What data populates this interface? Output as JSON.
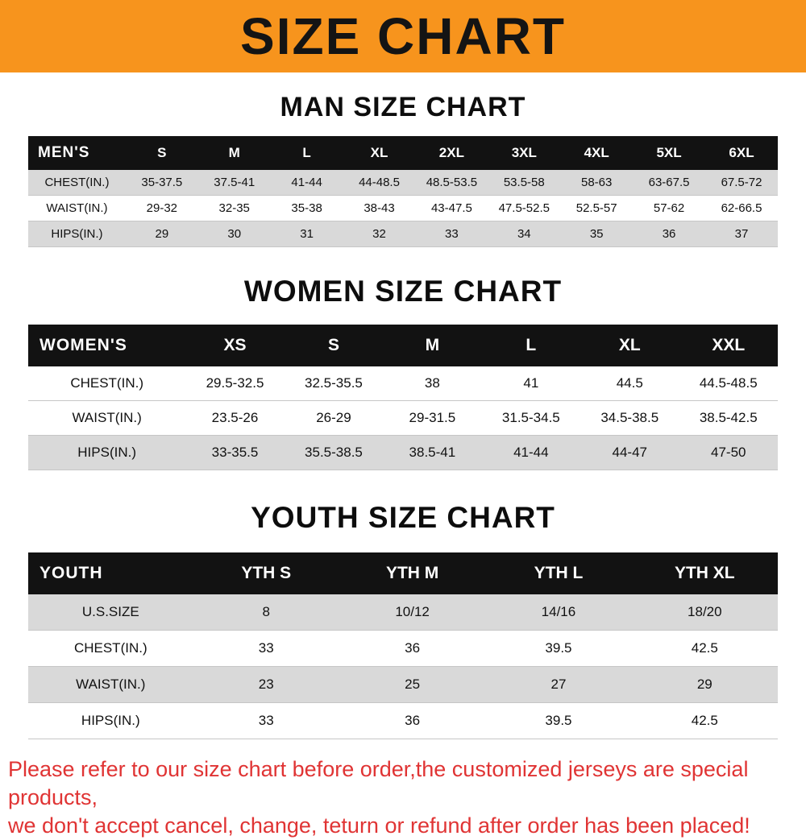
{
  "banner": {
    "title": "SIZE CHART"
  },
  "colors": {
    "banner_bg": "#F7941D",
    "table_header_bg": "#121212",
    "row_shade": "#D9D9D9",
    "footer_text": "#E03434"
  },
  "sections": [
    {
      "id": "man",
      "heading": "MAN SIZE CHART",
      "table": {
        "header": [
          "MEN'S",
          "S",
          "M",
          "L",
          "XL",
          "2XL",
          "3XL",
          "4XL",
          "5XL",
          "6XL"
        ],
        "rows": [
          {
            "label": "CHEST(IN.)",
            "values": [
              "35-37.5",
              "37.5-41",
              "41-44",
              "44-48.5",
              "48.5-53.5",
              "53.5-58",
              "58-63",
              "63-67.5",
              "67.5-72"
            ]
          },
          {
            "label": "WAIST(IN.)",
            "values": [
              "29-32",
              "32-35",
              "35-38",
              "38-43",
              "43-47.5",
              "47.5-52.5",
              "52.5-57",
              "57-62",
              "62-66.5"
            ]
          },
          {
            "label": "HIPS(IN.)",
            "values": [
              "29",
              "30",
              "31",
              "32",
              "33",
              "34",
              "35",
              "36",
              "37"
            ]
          }
        ]
      }
    },
    {
      "id": "women",
      "heading": "WOMEN SIZE CHART",
      "table": {
        "header": [
          "WOMEN'S",
          "XS",
          "S",
          "M",
          "L",
          "XL",
          "XXL"
        ],
        "rows": [
          {
            "label": "CHEST(IN.)",
            "values": [
              "29.5-32.5",
              "32.5-35.5",
              "38",
              "41",
              "44.5",
              "44.5-48.5"
            ]
          },
          {
            "label": "WAIST(IN.)",
            "values": [
              "23.5-26",
              "26-29",
              "29-31.5",
              "31.5-34.5",
              "34.5-38.5",
              "38.5-42.5"
            ]
          },
          {
            "label": "HIPS(IN.)",
            "values": [
              "33-35.5",
              "35.5-38.5",
              "38.5-41",
              "41-44",
              "44-47",
              "47-50"
            ]
          }
        ]
      }
    },
    {
      "id": "youth",
      "heading": "YOUTH SIZE CHART",
      "table": {
        "header": [
          "YOUTH",
          "YTH S",
          "YTH M",
          "YTH L",
          "YTH XL"
        ],
        "rows": [
          {
            "label": "U.S.SIZE",
            "values": [
              "8",
              "10/12",
              "14/16",
              "18/20"
            ]
          },
          {
            "label": "CHEST(IN.)",
            "values": [
              "33",
              "36",
              "39.5",
              "42.5"
            ]
          },
          {
            "label": "WAIST(IN.)",
            "values": [
              "23",
              "25",
              "27",
              "29"
            ]
          },
          {
            "label": "HIPS(IN.)",
            "values": [
              "33",
              "36",
              "39.5",
              "42.5"
            ]
          }
        ]
      }
    }
  ],
  "footer": {
    "lines": [
      "Please refer to our size chart before order,the customized jerseys are special products,",
      "we don't accept cancel, change, teturn or refund after order has been placed!"
    ]
  }
}
